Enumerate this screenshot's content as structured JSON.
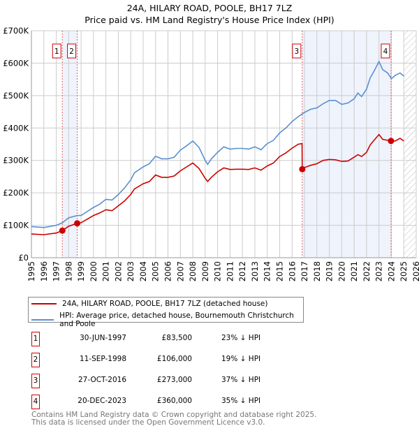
{
  "header": {
    "title": "24A, HILARY ROAD, POOLE, BH17 7LZ",
    "subtitle": "Price paid vs. HM Land Registry's House Price Index (HPI)"
  },
  "chart_data": {
    "type": "line",
    "title": "24A, HILARY ROAD, POOLE, BH17 7LZ",
    "subtitle": "Price paid vs. HM Land Registry's House Price Index (HPI)",
    "xlim": [
      1995,
      2026
    ],
    "ylim": [
      0,
      700000
    ],
    "x_ticks": [
      "1995",
      "1996",
      "1997",
      "1998",
      "1999",
      "2000",
      "2001",
      "2002",
      "2003",
      "2004",
      "2005",
      "2006",
      "2007",
      "2008",
      "2009",
      "2010",
      "2011",
      "2012",
      "2013",
      "2014",
      "2015",
      "2016",
      "2017",
      "2018",
      "2019",
      "2020",
      "2021",
      "2022",
      "2023",
      "2024",
      "2025",
      "2026"
    ],
    "y_ticks": [
      {
        "value": 0,
        "label": "£0"
      },
      {
        "value": 100000,
        "label": "£100K"
      },
      {
        "value": 200000,
        "label": "£200K"
      },
      {
        "value": 300000,
        "label": "£300K"
      },
      {
        "value": 400000,
        "label": "£400K"
      },
      {
        "value": 500000,
        "label": "£500K"
      },
      {
        "value": 600000,
        "label": "£600K"
      },
      {
        "value": 700000,
        "label": "£700K"
      }
    ],
    "grid": true,
    "forecast_hatch_from": 2025.0,
    "shaded_periods": [
      [
        1997.49,
        1998.69
      ],
      [
        2016.82,
        2023.97
      ]
    ],
    "colors": {
      "property": "#cc0000",
      "hpi": "#5b8fd0",
      "shade": "#eef3fc",
      "marker_line": "#e06060"
    },
    "series": [
      {
        "name": "24A, HILARY ROAD, POOLE, BH17 7LZ (detached house)",
        "color": "#cc0000",
        "x": [
          1995,
          1996,
          1997,
          1997.49,
          1998,
          1998.69,
          1999,
          2000,
          2000.5,
          2001,
          2001.5,
          2002,
          2002.5,
          2003,
          2003.3,
          2004,
          2004.5,
          2005,
          2005.5,
          2006,
          2006.5,
          2007,
          2007.5,
          2008,
          2008.5,
          2009,
          2009.2,
          2009.5,
          2010,
          2010.5,
          2011,
          2011.5,
          2012,
          2012.5,
          2013,
          2013.5,
          2014,
          2014.5,
          2015,
          2015.5,
          2016,
          2016.5,
          2016.8,
          2016.82,
          2017,
          2017.5,
          2018,
          2018.5,
          2019,
          2019.5,
          2020,
          2020.5,
          2021,
          2021.3,
          2021.6,
          2022,
          2022.3,
          2022.6,
          2023,
          2023.3,
          2023.7,
          2023.97,
          2024.3,
          2024.7,
          2025
        ],
        "y": [
          73000,
          71000,
          76000,
          83500,
          97000,
          106000,
          108000,
          130000,
          138000,
          148000,
          145000,
          160000,
          175000,
          195000,
          212000,
          228000,
          235000,
          255000,
          248000,
          248000,
          252000,
          268000,
          280000,
          292000,
          275000,
          245000,
          235000,
          248000,
          265000,
          277000,
          272000,
          273000,
          273000,
          272000,
          277000,
          270000,
          283000,
          292000,
          312000,
          323000,
          338000,
          350000,
          352000,
          273000,
          278000,
          285000,
          290000,
          300000,
          303000,
          302000,
          297000,
          298000,
          310000,
          318000,
          312000,
          325000,
          348000,
          362000,
          380000,
          365000,
          362000,
          360000,
          360000,
          368000,
          360000
        ]
      },
      {
        "name": "HPI: Average price, detached house, Bournemouth Christchurch and Poole",
        "color": "#5b8fd0",
        "x": [
          1995,
          1996,
          1997,
          1997.5,
          1998,
          1998.7,
          1999,
          2000,
          2000.5,
          2001,
          2001.5,
          2002,
          2002.5,
          2003,
          2003.3,
          2004,
          2004.5,
          2005,
          2005.5,
          2006,
          2006.5,
          2007,
          2007.5,
          2008,
          2008.5,
          2009,
          2009.2,
          2009.5,
          2010,
          2010.5,
          2011,
          2011.5,
          2012,
          2012.5,
          2013,
          2013.5,
          2014,
          2014.5,
          2015,
          2015.5,
          2016,
          2016.5,
          2017,
          2017.5,
          2018,
          2018.5,
          2019,
          2019.5,
          2020,
          2020.5,
          2021,
          2021.3,
          2021.6,
          2022,
          2022.3,
          2022.6,
          2023,
          2023.3,
          2023.7,
          2024,
          2024.3,
          2024.7,
          2025
        ],
        "y": [
          96000,
          93000,
          100000,
          108000,
          123000,
          130000,
          130000,
          155000,
          165000,
          180000,
          178000,
          195000,
          215000,
          240000,
          262000,
          280000,
          290000,
          313000,
          305000,
          305000,
          310000,
          332000,
          345000,
          360000,
          340000,
          300000,
          288000,
          305000,
          325000,
          342000,
          335000,
          337000,
          337000,
          335000,
          342000,
          333000,
          352000,
          362000,
          385000,
          400000,
          420000,
          435000,
          448000,
          458000,
          462000,
          475000,
          485000,
          485000,
          473000,
          477000,
          490000,
          508000,
          497000,
          520000,
          555000,
          575000,
          605000,
          580000,
          570000,
          552000,
          562000,
          570000,
          560000
        ]
      }
    ],
    "sales": [
      {
        "num": "1",
        "x": 1997.49,
        "price": 83500
      },
      {
        "num": "2",
        "x": 1998.69,
        "price": 106000
      },
      {
        "num": "3",
        "x": 2016.82,
        "price": 273000
      },
      {
        "num": "4",
        "x": 2023.97,
        "price": 360000
      }
    ]
  },
  "legend": {
    "property": "24A, HILARY ROAD, POOLE, BH17 7LZ (detached house)",
    "hpi": "HPI: Average price, detached house, Bournemouth Christchurch and Poole"
  },
  "sales_table": [
    {
      "num": "1",
      "date": "30-JUN-1997",
      "price": "£83,500",
      "hpi": "23% ↓ HPI"
    },
    {
      "num": "2",
      "date": "11-SEP-1998",
      "price": "£106,000",
      "hpi": "19% ↓ HPI"
    },
    {
      "num": "3",
      "date": "27-OCT-2016",
      "price": "£273,000",
      "hpi": "37% ↓ HPI"
    },
    {
      "num": "4",
      "date": "20-DEC-2023",
      "price": "£360,000",
      "hpi": "35% ↓ HPI"
    }
  ],
  "footer": {
    "line1": "Contains HM Land Registry data © Crown copyright and database right 2025.",
    "line2": "This data is licensed under the Open Government Licence v3.0."
  }
}
